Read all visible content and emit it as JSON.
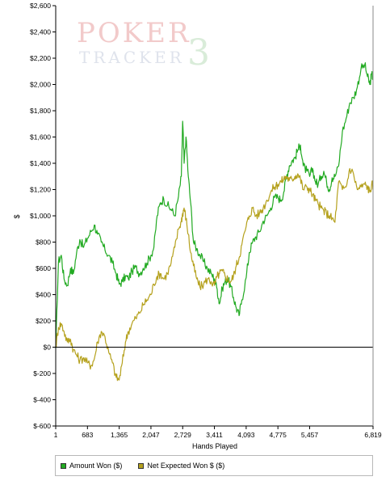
{
  "watermark": {
    "line1": "POKER",
    "line2": "TRACKER",
    "mark": "3"
  },
  "chart_data": {
    "type": "line",
    "xlabel": "Hands Played",
    "ylabel": "$",
    "xlim": [
      1,
      6819
    ],
    "ylim": [
      -600,
      2600
    ],
    "x_ticks": [
      1,
      683,
      1365,
      2047,
      2729,
      3411,
      4093,
      4775,
      5457,
      6819
    ],
    "x_tick_labels": [
      "1",
      "683",
      "1,365",
      "2,047",
      "2,729",
      "3,411",
      "4,093",
      "4,775",
      "5,457",
      "6,819"
    ],
    "y_ticks": [
      -600,
      -400,
      -200,
      0,
      200,
      400,
      600,
      800,
      1000,
      1200,
      1400,
      1600,
      1800,
      2000,
      2200,
      2400,
      2600
    ],
    "y_tick_labels": [
      "$-600",
      "$-400",
      "$-200",
      "$0",
      "$200",
      "$400",
      "$600",
      "$800",
      "$1,000",
      "$1,200",
      "$1,400",
      "$1,600",
      "$1,800",
      "$2,000",
      "$2,200",
      "$2,400",
      "$2,600"
    ],
    "reference_line": 0,
    "grid": false,
    "legend_position": "bottom",
    "colors": {
      "Amount Won ($)": "#22aa22",
      "Net Expected Won $ ($)": "#b5a11d",
      "zero_line": "#000000",
      "axis": "#000000"
    },
    "series": [
      {
        "name": "Amount Won ($)",
        "x": [
          1,
          60,
          120,
          180,
          250,
          320,
          380,
          450,
          520,
          600,
          683,
          760,
          830,
          900,
          980,
          1060,
          1140,
          1220,
          1300,
          1365,
          1430,
          1500,
          1560,
          1640,
          1720,
          1800,
          1880,
          1960,
          2047,
          2110,
          2180,
          2250,
          2320,
          2400,
          2480,
          2560,
          2640,
          2700,
          2729,
          2760,
          2800,
          2850,
          2900,
          2960,
          3030,
          3100,
          3180,
          3260,
          3340,
          3411,
          3470,
          3520,
          3580,
          3640,
          3700,
          3760,
          3820,
          3880,
          3940,
          4000,
          4093,
          4160,
          4230,
          4300,
          4380,
          4460,
          4540,
          4620,
          4700,
          4775,
          4840,
          4900,
          4960,
          5020,
          5080,
          5140,
          5200,
          5260,
          5320,
          5400,
          5457,
          5520,
          5580,
          5640,
          5700,
          5760,
          5820,
          5880,
          5940,
          6000,
          6080,
          6160,
          6240,
          6320,
          6400,
          6480,
          6560,
          6640,
          6700,
          6750,
          6790,
          6819
        ],
        "values": [
          -10,
          650,
          700,
          520,
          470,
          600,
          560,
          720,
          820,
          760,
          830,
          880,
          930,
          860,
          800,
          740,
          700,
          640,
          560,
          480,
          500,
          540,
          520,
          580,
          610,
          560,
          600,
          640,
          700,
          760,
          1000,
          1100,
          1130,
          1080,
          1050,
          1000,
          1150,
          1300,
          1720,
          1400,
          1600,
          1300,
          1100,
          800,
          750,
          700,
          650,
          600,
          560,
          520,
          440,
          330,
          450,
          500,
          520,
          460,
          380,
          300,
          240,
          360,
          530,
          720,
          800,
          840,
          880,
          960,
          1000,
          1060,
          1140,
          1140,
          1120,
          1180,
          1300,
          1380,
          1420,
          1440,
          1500,
          1540,
          1380,
          1340,
          1300,
          1360,
          1260,
          1240,
          1300,
          1340,
          1260,
          1200,
          1290,
          1300,
          1380,
          1640,
          1740,
          1860,
          1900,
          1980,
          2120,
          2150,
          2060,
          2000,
          2080,
          2040
        ]
      },
      {
        "name": "Net Expected Won $ ($)",
        "x": [
          1,
          60,
          120,
          180,
          250,
          320,
          380,
          450,
          520,
          600,
          683,
          760,
          830,
          900,
          980,
          1060,
          1140,
          1220,
          1300,
          1365,
          1430,
          1500,
          1560,
          1640,
          1720,
          1800,
          1880,
          1960,
          2047,
          2110,
          2180,
          2250,
          2320,
          2400,
          2480,
          2560,
          2640,
          2700,
          2729,
          2760,
          2800,
          2850,
          2900,
          2960,
          3030,
          3100,
          3180,
          3260,
          3340,
          3411,
          3470,
          3520,
          3580,
          3640,
          3700,
          3760,
          3820,
          3880,
          3940,
          4000,
          4093,
          4160,
          4230,
          4300,
          4380,
          4460,
          4540,
          4620,
          4700,
          4775,
          4840,
          4900,
          4960,
          5020,
          5080,
          5140,
          5200,
          5260,
          5320,
          5400,
          5457,
          5520,
          5580,
          5640,
          5700,
          5760,
          5820,
          5880,
          5940,
          6000,
          6080,
          6160,
          6240,
          6320,
          6400,
          6480,
          6560,
          6640,
          6700,
          6750,
          6790,
          6819
        ],
        "values": [
          0,
          150,
          180,
          120,
          40,
          60,
          -20,
          -60,
          -100,
          -80,
          -120,
          -140,
          -90,
          40,
          120,
          80,
          -40,
          -120,
          -230,
          -250,
          -120,
          40,
          120,
          180,
          220,
          260,
          320,
          360,
          400,
          480,
          540,
          560,
          520,
          560,
          640,
          760,
          900,
          960,
          1020,
          1060,
          980,
          860,
          720,
          620,
          520,
          460,
          480,
          520,
          500,
          470,
          540,
          560,
          580,
          540,
          520,
          500,
          540,
          620,
          680,
          780,
          920,
          1000,
          1060,
          1000,
          1020,
          1060,
          1120,
          1180,
          1220,
          1240,
          1260,
          1280,
          1300,
          1270,
          1280,
          1300,
          1320,
          1280,
          1200,
          1220,
          1200,
          1160,
          1120,
          1090,
          1060,
          1040,
          1020,
          1000,
          980,
          950,
          1260,
          1200,
          1220,
          1360,
          1320,
          1200,
          1220,
          1240,
          1220,
          1180,
          1240,
          1230
        ]
      }
    ]
  }
}
